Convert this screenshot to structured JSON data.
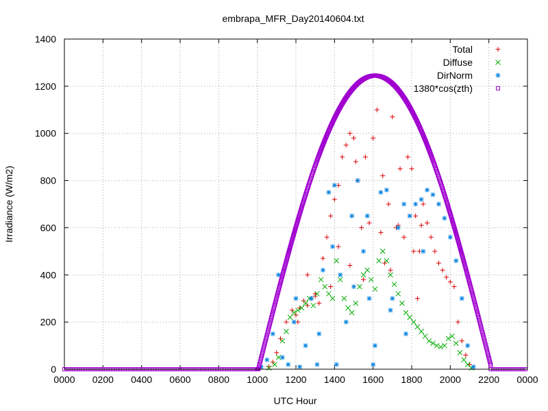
{
  "chart_data": {
    "type": "scatter",
    "title": "embrapa_MFR_Day20140604.txt",
    "xlabel": "UTC Hour",
    "ylabel": "Irradiance (W/m2)",
    "xlim": [
      0,
      24
    ],
    "ylim": [
      0,
      1400
    ],
    "x_ticks": [
      0,
      2,
      4,
      6,
      8,
      10,
      12,
      14,
      16,
      18,
      20,
      22,
      24
    ],
    "x_tick_labels": [
      "0000",
      "0200",
      "0400",
      "0600",
      "0800",
      "1000",
      "1200",
      "1400",
      "1600",
      "1800",
      "2000",
      "2200",
      "0000"
    ],
    "y_ticks": [
      0,
      200,
      400,
      600,
      800,
      1000,
      1200,
      1400
    ],
    "y_tick_labels": [
      "0",
      "200",
      "400",
      "600",
      "800",
      "1000",
      "1200",
      "1400"
    ],
    "grid": true,
    "legend_position": "top-right",
    "series": [
      {
        "name": "Total",
        "marker": "plus",
        "color": "#dd0000",
        "points": [
          [
            10.6,
            10
          ],
          [
            10.8,
            30
          ],
          [
            11.0,
            70
          ],
          [
            11.2,
            130
          ],
          [
            11.5,
            200
          ],
          [
            11.8,
            250
          ],
          [
            12.0,
            230
          ],
          [
            12.2,
            260
          ],
          [
            12.4,
            290
          ],
          [
            12.6,
            270
          ],
          [
            12.8,
            300
          ],
          [
            13.0,
            310
          ],
          [
            13.2,
            280
          ],
          [
            13.4,
            470
          ],
          [
            13.6,
            560
          ],
          [
            13.8,
            650
          ],
          [
            14.0,
            720
          ],
          [
            14.2,
            780
          ],
          [
            14.4,
            900
          ],
          [
            14.6,
            950
          ],
          [
            14.8,
            1000
          ],
          [
            15.0,
            980
          ],
          [
            15.2,
            800
          ],
          [
            15.4,
            600
          ],
          [
            15.6,
            900
          ],
          [
            15.8,
            620
          ],
          [
            16.0,
            980
          ],
          [
            16.2,
            1100
          ],
          [
            16.4,
            580
          ],
          [
            16.6,
            450
          ],
          [
            16.8,
            700
          ],
          [
            17.0,
            1070
          ],
          [
            17.2,
            600
          ],
          [
            17.4,
            850
          ],
          [
            17.6,
            560
          ],
          [
            17.8,
            900
          ],
          [
            18.0,
            850
          ],
          [
            18.2,
            650
          ],
          [
            18.4,
            500
          ],
          [
            18.6,
            700
          ],
          [
            18.8,
            620
          ],
          [
            19.0,
            560
          ],
          [
            19.2,
            500
          ],
          [
            19.4,
            450
          ],
          [
            19.6,
            420
          ],
          [
            19.8,
            390
          ],
          [
            20.0,
            370
          ],
          [
            20.2,
            350
          ],
          [
            20.4,
            200
          ],
          [
            20.6,
            120
          ],
          [
            20.8,
            60
          ],
          [
            21.0,
            20
          ],
          [
            12.6,
            400
          ],
          [
            13.0,
            320
          ],
          [
            14.2,
            520
          ],
          [
            15.1,
            880
          ],
          [
            16.5,
            820
          ],
          [
            17.3,
            610
          ],
          [
            18.1,
            500
          ],
          [
            18.5,
            610
          ],
          [
            12.1,
            200
          ],
          [
            13.8,
            350
          ],
          [
            14.8,
            440
          ],
          [
            15.5,
            380
          ],
          [
            16.9,
            420
          ],
          [
            18.3,
            300
          ]
        ]
      },
      {
        "name": "Diffuse",
        "marker": "cross",
        "color": "#00aa00",
        "points": [
          [
            10.6,
            5
          ],
          [
            10.9,
            20
          ],
          [
            11.1,
            50
          ],
          [
            11.3,
            120
          ],
          [
            11.5,
            160
          ],
          [
            11.7,
            220
          ],
          [
            11.9,
            240
          ],
          [
            12.1,
            250
          ],
          [
            12.3,
            260
          ],
          [
            12.5,
            280
          ],
          [
            12.7,
            300
          ],
          [
            12.9,
            270
          ],
          [
            13.1,
            320
          ],
          [
            13.3,
            380
          ],
          [
            13.5,
            350
          ],
          [
            13.7,
            320
          ],
          [
            13.9,
            300
          ],
          [
            14.1,
            460
          ],
          [
            14.3,
            380
          ],
          [
            14.5,
            300
          ],
          [
            14.7,
            260
          ],
          [
            14.9,
            240
          ],
          [
            15.1,
            280
          ],
          [
            15.3,
            350
          ],
          [
            15.5,
            400
          ],
          [
            15.7,
            420
          ],
          [
            15.9,
            380
          ],
          [
            16.1,
            340
          ],
          [
            16.3,
            460
          ],
          [
            16.5,
            500
          ],
          [
            16.7,
            460
          ],
          [
            16.9,
            400
          ],
          [
            17.1,
            360
          ],
          [
            17.3,
            320
          ],
          [
            17.5,
            280
          ],
          [
            17.7,
            240
          ],
          [
            17.9,
            220
          ],
          [
            18.1,
            200
          ],
          [
            18.3,
            180
          ],
          [
            18.5,
            160
          ],
          [
            18.7,
            140
          ],
          [
            18.9,
            120
          ],
          [
            19.1,
            110
          ],
          [
            19.3,
            100
          ],
          [
            19.5,
            95
          ],
          [
            19.7,
            100
          ],
          [
            19.9,
            130
          ],
          [
            20.1,
            140
          ],
          [
            20.3,
            110
          ],
          [
            20.5,
            70
          ],
          [
            20.7,
            40
          ],
          [
            20.9,
            20
          ],
          [
            21.1,
            5
          ]
        ]
      },
      {
        "name": "DirNorm",
        "marker": "star",
        "color": "#0080e0",
        "points": [
          [
            10.2,
            10
          ],
          [
            10.5,
            40
          ],
          [
            10.8,
            150
          ],
          [
            11.1,
            400
          ],
          [
            11.3,
            50
          ],
          [
            11.6,
            20
          ],
          [
            11.9,
            200
          ],
          [
            12.2,
            10
          ],
          [
            12.5,
            100
          ],
          [
            12.8,
            300
          ],
          [
            13.1,
            20
          ],
          [
            13.4,
            420
          ],
          [
            13.7,
            750
          ],
          [
            14.0,
            780
          ],
          [
            14.3,
            400
          ],
          [
            14.6,
            200
          ],
          [
            14.9,
            650
          ],
          [
            15.2,
            800
          ],
          [
            15.5,
            500
          ],
          [
            15.8,
            300
          ],
          [
            16.1,
            100
          ],
          [
            16.4,
            750
          ],
          [
            16.7,
            760
          ],
          [
            17.0,
            300
          ],
          [
            17.3,
            600
          ],
          [
            17.6,
            700
          ],
          [
            17.9,
            650
          ],
          [
            18.2,
            700
          ],
          [
            18.5,
            720
          ],
          [
            18.8,
            760
          ],
          [
            19.1,
            740
          ],
          [
            19.4,
            700
          ],
          [
            19.7,
            640
          ],
          [
            20.0,
            560
          ],
          [
            20.3,
            460
          ],
          [
            20.6,
            300
          ],
          [
            20.9,
            100
          ],
          [
            21.2,
            10
          ],
          [
            13.2,
            150
          ],
          [
            14.1,
            20
          ],
          [
            15.0,
            350
          ],
          [
            16.0,
            20
          ],
          [
            16.9,
            250
          ],
          [
            17.7,
            150
          ],
          [
            12.0,
            300
          ],
          [
            13.9,
            520
          ],
          [
            15.7,
            650
          ],
          [
            18.6,
            500
          ]
        ]
      },
      {
        "name": "1380*cos(zth)",
        "marker": "square",
        "color": "#a000d0",
        "curve": {
          "zero_before": 10.0,
          "zero_after": 22.1,
          "peak_x": 16.1,
          "peak_y": 1245
        }
      }
    ]
  }
}
